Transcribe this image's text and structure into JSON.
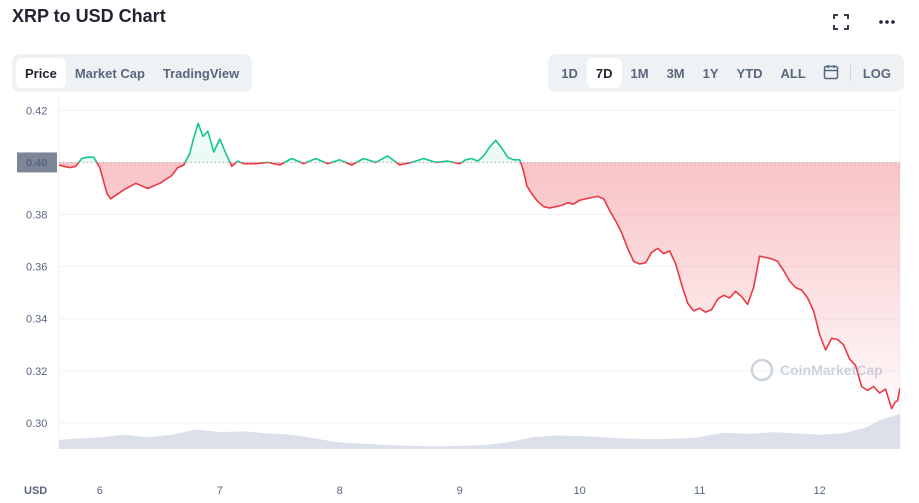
{
  "header": {
    "title": "XRP to USD Chart"
  },
  "icons": {
    "fullscreen": "fullscreen-icon",
    "more": "more-horizontal-icon",
    "calendar": "calendar-icon"
  },
  "tabs": [
    {
      "label": "Price",
      "active": true
    },
    {
      "label": "Market Cap",
      "active": false
    },
    {
      "label": "TradingView",
      "active": false
    }
  ],
  "ranges": [
    {
      "label": "1D",
      "active": false
    },
    {
      "label": "7D",
      "active": true
    },
    {
      "label": "1M",
      "active": false
    },
    {
      "label": "3M",
      "active": false
    },
    {
      "label": "1Y",
      "active": false
    },
    {
      "label": "YTD",
      "active": false
    },
    {
      "label": "ALL",
      "active": false
    }
  ],
  "log_label": "LOG",
  "colors": {
    "up": "#16c784",
    "down": "#ea3943",
    "grid": "#eff2f5",
    "volume": "#cfd6e4",
    "badge": "#7d8696"
  },
  "chart_data": {
    "type": "line",
    "currency": "USD",
    "reference_price": 0.4,
    "reference_label": "0.40",
    "ylim": [
      0.29,
      0.4255
    ],
    "xlim": [
      5.66,
      12.67
    ],
    "y_ticks": [
      "0.42",
      "0.40",
      "0.38",
      "0.36",
      "0.34",
      "0.32",
      "0.30"
    ],
    "x_ticks": [
      "6",
      "7",
      "8",
      "9",
      "10",
      "11",
      "12"
    ],
    "grid": true,
    "watermark": "CoinMarketCap",
    "price_series": {
      "x": [
        5.66,
        5.7,
        5.75,
        5.8,
        5.85,
        5.9,
        5.95,
        6.0,
        6.03,
        6.06,
        6.09,
        6.12,
        6.2,
        6.3,
        6.4,
        6.5,
        6.6,
        6.65,
        6.7,
        6.75,
        6.78,
        6.82,
        6.86,
        6.9,
        6.95,
        7.0,
        7.05,
        7.1,
        7.15,
        7.2,
        7.3,
        7.4,
        7.5,
        7.6,
        7.7,
        7.8,
        7.9,
        8.0,
        8.1,
        8.2,
        8.3,
        8.4,
        8.5,
        8.6,
        8.7,
        8.8,
        8.9,
        9.0,
        9.05,
        9.1,
        9.15,
        9.2,
        9.25,
        9.3,
        9.35,
        9.4,
        9.45,
        9.5,
        9.53,
        9.56,
        9.6,
        9.65,
        9.7,
        9.75,
        9.8,
        9.85,
        9.9,
        9.95,
        10.0,
        10.05,
        10.1,
        10.15,
        10.2,
        10.25,
        10.3,
        10.35,
        10.4,
        10.45,
        10.5,
        10.55,
        10.6,
        10.65,
        10.7,
        10.75,
        10.8,
        10.85,
        10.9,
        10.95,
        11.0,
        11.05,
        11.1,
        11.15,
        11.2,
        11.25,
        11.3,
        11.35,
        11.4,
        11.45,
        11.5,
        11.55,
        11.6,
        11.65,
        11.7,
        11.75,
        11.8,
        11.85,
        11.9,
        11.95,
        12.0,
        12.05,
        12.1,
        12.15,
        12.2,
        12.25,
        12.3,
        12.35,
        12.4,
        12.45,
        12.5,
        12.55,
        12.6,
        12.63,
        12.65,
        12.67
      ],
      "y": [
        0.399,
        0.3985,
        0.398,
        0.3985,
        0.4015,
        0.402,
        0.402,
        0.398,
        0.393,
        0.388,
        0.386,
        0.387,
        0.3895,
        0.392,
        0.39,
        0.392,
        0.395,
        0.398,
        0.399,
        0.4035,
        0.409,
        0.415,
        0.41,
        0.412,
        0.404,
        0.409,
        0.4035,
        0.3985,
        0.4005,
        0.3995,
        0.3995,
        0.4,
        0.399,
        0.4015,
        0.3995,
        0.4015,
        0.3995,
        0.401,
        0.399,
        0.4015,
        0.4,
        0.4025,
        0.399,
        0.4,
        0.4015,
        0.4,
        0.4005,
        0.3995,
        0.401,
        0.4015,
        0.4005,
        0.4025,
        0.406,
        0.4085,
        0.4055,
        0.402,
        0.401,
        0.401,
        0.397,
        0.391,
        0.388,
        0.385,
        0.383,
        0.3825,
        0.383,
        0.3835,
        0.3845,
        0.384,
        0.3855,
        0.386,
        0.3865,
        0.387,
        0.386,
        0.3815,
        0.3775,
        0.373,
        0.367,
        0.362,
        0.361,
        0.3615,
        0.3655,
        0.367,
        0.365,
        0.366,
        0.361,
        0.353,
        0.346,
        0.343,
        0.344,
        0.3425,
        0.3435,
        0.3475,
        0.349,
        0.348,
        0.3505,
        0.3485,
        0.3455,
        0.352,
        0.364,
        0.3635,
        0.363,
        0.362,
        0.3585,
        0.3545,
        0.352,
        0.351,
        0.348,
        0.343,
        0.334,
        0.328,
        0.3325,
        0.332,
        0.33,
        0.3245,
        0.322,
        0.314,
        0.3125,
        0.314,
        0.3115,
        0.313,
        0.3055,
        0.308,
        0.3085,
        0.3135
      ]
    },
    "volume_series": {
      "x": [
        5.66,
        5.8,
        6.0,
        6.2,
        6.4,
        6.6,
        6.7,
        6.8,
        6.9,
        7.0,
        7.2,
        7.4,
        7.6,
        7.8,
        8.0,
        8.2,
        8.4,
        8.6,
        8.8,
        9.0,
        9.2,
        9.4,
        9.5,
        9.6,
        9.8,
        10.0,
        10.2,
        10.4,
        10.6,
        10.8,
        11.0,
        11.1,
        11.2,
        11.4,
        11.6,
        11.8,
        12.0,
        12.2,
        12.4,
        12.5,
        12.6,
        12.67
      ],
      "y": [
        0.2935,
        0.294,
        0.2945,
        0.2955,
        0.2945,
        0.2955,
        0.2965,
        0.2975,
        0.297,
        0.2965,
        0.2968,
        0.296,
        0.2955,
        0.294,
        0.2925,
        0.292,
        0.2915,
        0.2912,
        0.291,
        0.2912,
        0.2915,
        0.2925,
        0.2935,
        0.2945,
        0.2952,
        0.295,
        0.2945,
        0.294,
        0.2938,
        0.294,
        0.2945,
        0.2955,
        0.2962,
        0.2958,
        0.2965,
        0.296,
        0.2955,
        0.296,
        0.2985,
        0.301,
        0.3025,
        0.3035
      ]
    }
  }
}
